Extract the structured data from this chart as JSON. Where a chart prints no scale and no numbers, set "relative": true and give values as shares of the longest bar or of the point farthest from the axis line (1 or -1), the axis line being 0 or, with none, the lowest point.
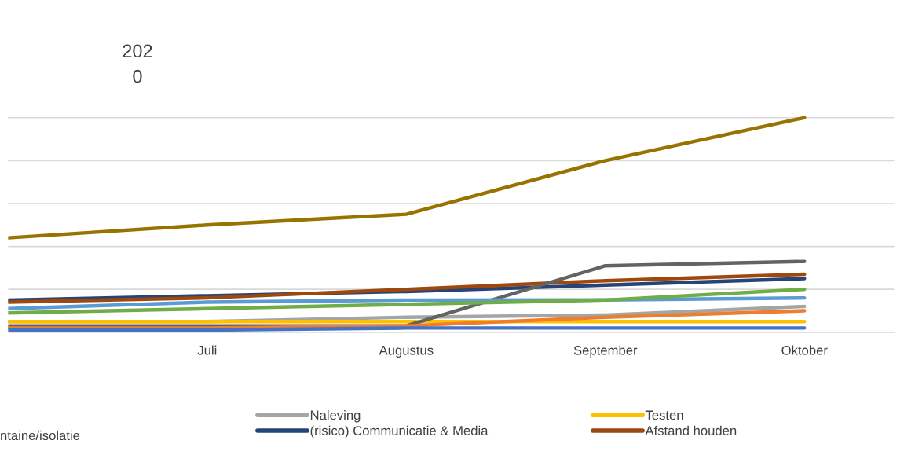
{
  "chart_data": {
    "type": "line",
    "relative": true,
    "categories": [
      null,
      "Juli",
      "Augustus",
      "September",
      "Oktober"
    ],
    "series": [
      {
        "name": "Naleving",
        "color": "#a5a5a5",
        "values": [
          0.05,
          0.05,
          0.07,
          0.08,
          0.12
        ]
      },
      {
        "name": "(risico) Communicatie & Media",
        "color": "#264478",
        "values": [
          0.15,
          0.17,
          0.19,
          0.22,
          0.25
        ]
      },
      {
        "name": "Testen",
        "color": "#ffc000",
        "values": [
          0.05,
          0.05,
          0.05,
          0.05,
          0.05
        ]
      },
      {
        "name": "Afstand houden",
        "color": "#9e480e",
        "values": [
          0.14,
          0.16,
          0.2,
          0.24,
          0.27
        ]
      },
      {
        "color": "#997300",
        "values": [
          0.44,
          0.5,
          0.55,
          0.8,
          1.0
        ]
      },
      {
        "color": "#636363",
        "values": [
          0.03,
          0.03,
          0.03,
          0.31,
          0.33
        ]
      },
      {
        "color": "#5b9bd5",
        "values": [
          0.11,
          0.14,
          0.15,
          0.15,
          0.16
        ]
      },
      {
        "color": "#70ad47",
        "values": [
          0.09,
          0.11,
          0.13,
          0.15,
          0.2
        ]
      },
      {
        "color": "#ed7d31",
        "values": [
          0.02,
          0.02,
          0.03,
          0.07,
          0.1
        ]
      },
      {
        "color": "#4472c4",
        "values": [
          0.01,
          0.01,
          0.02,
          0.02,
          0.02
        ]
      }
    ],
    "annotations": [
      "202\n0",
      "ntaine/isolatie"
    ],
    "grid": "y",
    "legend": "bottom",
    "line_style": "solid",
    "marker": "none"
  }
}
